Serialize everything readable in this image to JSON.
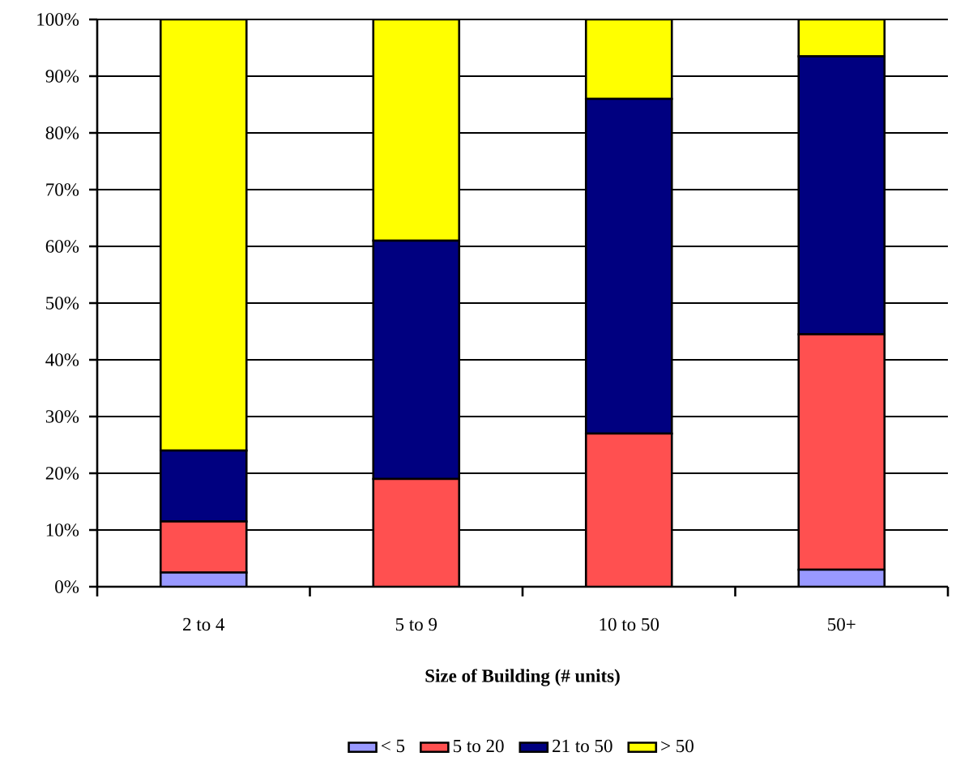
{
  "chart_data": {
    "type": "bar",
    "stacked": true,
    "xlabel": "Size of Building (# units)",
    "categories": [
      "2 to 4",
      "5 to 9",
      "10 to 50",
      "50+"
    ],
    "series": [
      {
        "name": "< 5",
        "color": "#9999ff",
        "values": [
          2.5,
          0,
          0,
          3
        ]
      },
      {
        "name": "5 to 20",
        "color": "#ff5050",
        "values": [
          9,
          19,
          27,
          41.5
        ]
      },
      {
        "name": "21 to 50",
        "color": "#000080",
        "values": [
          12.5,
          42,
          59,
          49
        ]
      },
      {
        "name": "> 50",
        "color": "#ffff00",
        "values": [
          76,
          39,
          14,
          6.5
        ]
      }
    ],
    "ylim": [
      0,
      100
    ],
    "yticks": [
      {
        "value": 0,
        "label": "0%"
      },
      {
        "value": 10,
        "label": "10%"
      },
      {
        "value": 20,
        "label": "20%"
      },
      {
        "value": 30,
        "label": "30%"
      },
      {
        "value": 40,
        "label": "40%"
      },
      {
        "value": 50,
        "label": "50%"
      },
      {
        "value": 60,
        "label": "60%"
      },
      {
        "value": 70,
        "label": "70%"
      },
      {
        "value": 80,
        "label": "80%"
      },
      {
        "value": 90,
        "label": "90%"
      },
      {
        "value": 100,
        "label": "100%"
      }
    ],
    "grid": "y",
    "legend": "bottom"
  }
}
